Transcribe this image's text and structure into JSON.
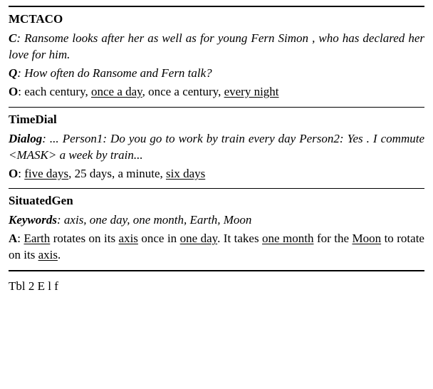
{
  "sections": [
    {
      "title": "MCTACO",
      "rows": [
        {
          "label": "C",
          "label_style": "bolditalic",
          "sep": ": ",
          "content_style": "italic",
          "segments": [
            {
              "t": "Ransome looks after her as well as for young Fern Simon , who has declared her love for him.",
              "u": false
            }
          ]
        },
        {
          "label": "Q",
          "label_style": "bolditalic",
          "sep": ": ",
          "content_style": "italic",
          "segments": [
            {
              "t": "How often do Ransome and Fern talk?",
              "u": false
            }
          ]
        },
        {
          "label": "O",
          "label_style": "bold",
          "sep": ": ",
          "content_style": "normal",
          "segments": [
            {
              "t": "each century, ",
              "u": false
            },
            {
              "t": "once a day",
              "u": true
            },
            {
              "t": ", once a century, ",
              "u": false
            },
            {
              "t": "every night",
              "u": true
            }
          ]
        }
      ]
    },
    {
      "title": "TimeDial",
      "rows": [
        {
          "label": "Dialog",
          "label_style": "bolditalic",
          "sep": ": ",
          "content_style": "italic",
          "segments": [
            {
              "t": "... Person1: Do you go to work by train every day Person2: Yes . I commute <MASK> a week by train...",
              "u": false
            }
          ]
        },
        {
          "label": "O",
          "label_style": "bold",
          "sep": ": ",
          "content_style": "normal",
          "segments": [
            {
              "t": "five days",
              "u": true
            },
            {
              "t": ", 25 days, a minute, ",
              "u": false
            },
            {
              "t": "six days",
              "u": true
            }
          ]
        }
      ]
    },
    {
      "title": "SituatedGen",
      "rows": [
        {
          "label": "Keywords",
          "label_style": "bolditalic",
          "sep": ": ",
          "content_style": "italic",
          "segments": [
            {
              "t": "axis, one day, one month, Earth, Moon",
              "u": false
            }
          ]
        },
        {
          "label": "A",
          "label_style": "bold",
          "sep": ": ",
          "content_style": "normal",
          "segments": [
            {
              "t": "Earth",
              "u": true
            },
            {
              "t": " rotates on its ",
              "u": false
            },
            {
              "t": "axis",
              "u": true
            },
            {
              "t": " once in ",
              "u": false
            },
            {
              "t": "one day",
              "u": true
            },
            {
              "t": ".  It takes ",
              "u": false
            },
            {
              "t": "one month",
              "u": true
            },
            {
              "t": " for the ",
              "u": false
            },
            {
              "t": "Moon",
              "u": true
            },
            {
              "t": " to rotate on its ",
              "u": false
            },
            {
              "t": "axis",
              "u": true
            },
            {
              "t": ".",
              "u": false
            }
          ]
        }
      ]
    }
  ],
  "caption_prefix": "T",
  "caption_rest": "bl  2  E        l    f"
}
